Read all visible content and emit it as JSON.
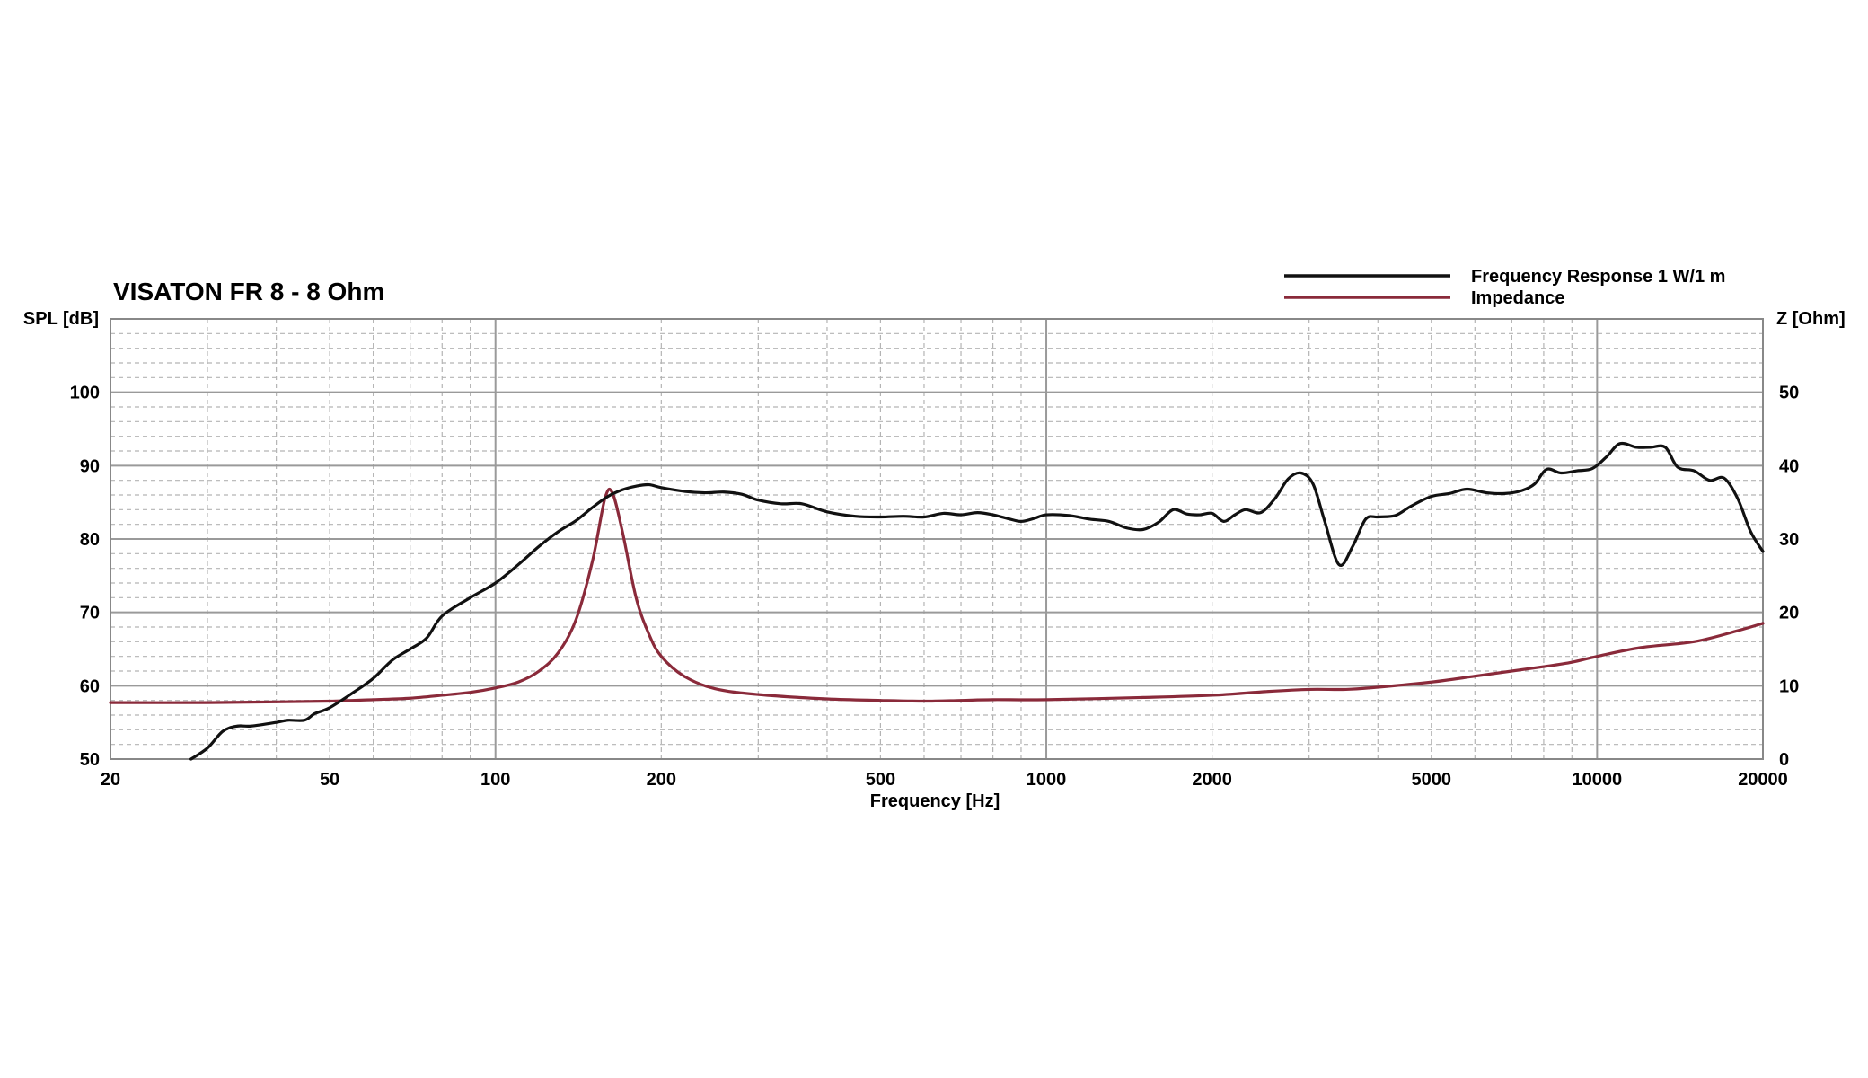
{
  "chart_data": {
    "type": "line",
    "title": "VISATON FR 8 - 8 Ohm",
    "xlabel": "Frequency [Hz]",
    "ylabel_left": "SPL [dB]",
    "ylabel_right": "Z [Ohm]",
    "x_scale": "log",
    "xlim": [
      20,
      20000
    ],
    "ylim_left": [
      50,
      110
    ],
    "ylim_right": [
      0,
      60
    ],
    "x_tick_labels": [
      "20",
      "50",
      "100",
      "200",
      "500",
      "1000",
      "2000",
      "5000",
      "10000",
      "20000"
    ],
    "y_left_tick_labels": [
      "50",
      "60",
      "70",
      "80",
      "90",
      "100"
    ],
    "y_right_tick_labels": [
      "0",
      "10",
      "20",
      "30",
      "40",
      "50"
    ],
    "grid": true,
    "legend_position": "top-right",
    "series": [
      {
        "name": "Frequency Response 1 W/1 m",
        "axis": "left",
        "color": "#111111",
        "points": [
          [
            28,
            50
          ],
          [
            30,
            51.5
          ],
          [
            32,
            53.8
          ],
          [
            34,
            54.5
          ],
          [
            36,
            54.5
          ],
          [
            40,
            55
          ],
          [
            42,
            55.3
          ],
          [
            45,
            55.3
          ],
          [
            47,
            56.2
          ],
          [
            50,
            57
          ],
          [
            55,
            59
          ],
          [
            60,
            61
          ],
          [
            65,
            63.5
          ],
          [
            70,
            65
          ],
          [
            75,
            66.5
          ],
          [
            80,
            69.5
          ],
          [
            90,
            72
          ],
          [
            100,
            74
          ],
          [
            110,
            76.5
          ],
          [
            120,
            79
          ],
          [
            130,
            81
          ],
          [
            140,
            82.5
          ],
          [
            150,
            84.3
          ],
          [
            160,
            85.8
          ],
          [
            170,
            86.7
          ],
          [
            180,
            87.2
          ],
          [
            190,
            87.4
          ],
          [
            200,
            87
          ],
          [
            220,
            86.5
          ],
          [
            240,
            86.3
          ],
          [
            260,
            86.4
          ],
          [
            280,
            86.1
          ],
          [
            300,
            85.3
          ],
          [
            330,
            84.8
          ],
          [
            360,
            84.8
          ],
          [
            400,
            83.7
          ],
          [
            450,
            83.1
          ],
          [
            500,
            83.0
          ],
          [
            550,
            83.1
          ],
          [
            600,
            83.0
          ],
          [
            650,
            83.5
          ],
          [
            700,
            83.3
          ],
          [
            750,
            83.6
          ],
          [
            800,
            83.3
          ],
          [
            850,
            82.8
          ],
          [
            900,
            82.4
          ],
          [
            950,
            82.8
          ],
          [
            1000,
            83.3
          ],
          [
            1100,
            83.2
          ],
          [
            1200,
            82.7
          ],
          [
            1300,
            82.4
          ],
          [
            1400,
            81.5
          ],
          [
            1500,
            81.3
          ],
          [
            1600,
            82.3
          ],
          [
            1700,
            84.0
          ],
          [
            1800,
            83.4
          ],
          [
            1900,
            83.3
          ],
          [
            2000,
            83.5
          ],
          [
            2100,
            82.4
          ],
          [
            2200,
            83.3
          ],
          [
            2300,
            84.0
          ],
          [
            2450,
            83.6
          ],
          [
            2600,
            85.5
          ],
          [
            2750,
            88.2
          ],
          [
            2900,
            89.0
          ],
          [
            3050,
            87.5
          ],
          [
            3200,
            82.5
          ],
          [
            3400,
            76.5
          ],
          [
            3600,
            79
          ],
          [
            3800,
            82.7
          ],
          [
            4000,
            83.0
          ],
          [
            4300,
            83.2
          ],
          [
            4600,
            84.5
          ],
          [
            5000,
            85.8
          ],
          [
            5400,
            86.2
          ],
          [
            5800,
            86.8
          ],
          [
            6300,
            86.3
          ],
          [
            6800,
            86.2
          ],
          [
            7300,
            86.6
          ],
          [
            7700,
            87.5
          ],
          [
            8100,
            89.5
          ],
          [
            8600,
            89.0
          ],
          [
            9200,
            89.3
          ],
          [
            9800,
            89.6
          ],
          [
            10400,
            91.2
          ],
          [
            11000,
            93.0
          ],
          [
            11800,
            92.5
          ],
          [
            12500,
            92.5
          ],
          [
            13300,
            92.5
          ],
          [
            14000,
            89.8
          ],
          [
            15000,
            89.3
          ],
          [
            16000,
            88.0
          ],
          [
            17000,
            88.3
          ],
          [
            18000,
            85.5
          ],
          [
            19000,
            81.0
          ],
          [
            20000,
            78.3
          ]
        ]
      },
      {
        "name": "Impedance",
        "axis": "right",
        "color": "#8a2a3a",
        "points": [
          [
            20,
            7.7
          ],
          [
            30,
            7.7
          ],
          [
            40,
            7.8
          ],
          [
            50,
            7.9
          ],
          [
            60,
            8.1
          ],
          [
            70,
            8.3
          ],
          [
            80,
            8.7
          ],
          [
            90,
            9.1
          ],
          [
            100,
            9.7
          ],
          [
            110,
            10.5
          ],
          [
            120,
            12.0
          ],
          [
            130,
            14.5
          ],
          [
            140,
            19.0
          ],
          [
            150,
            27.0
          ],
          [
            158,
            35.5
          ],
          [
            163,
            36.3
          ],
          [
            170,
            31.0
          ],
          [
            180,
            22.0
          ],
          [
            190,
            17.0
          ],
          [
            200,
            14.0
          ],
          [
            220,
            11.3
          ],
          [
            250,
            9.6
          ],
          [
            300,
            8.8
          ],
          [
            400,
            8.2
          ],
          [
            500,
            8.0
          ],
          [
            600,
            7.9
          ],
          [
            700,
            8.0
          ],
          [
            800,
            8.1
          ],
          [
            1000,
            8.1
          ],
          [
            1500,
            8.4
          ],
          [
            2000,
            8.7
          ],
          [
            2500,
            9.2
          ],
          [
            3000,
            9.5
          ],
          [
            3500,
            9.5
          ],
          [
            4000,
            9.8
          ],
          [
            5000,
            10.5
          ],
          [
            6000,
            11.3
          ],
          [
            7000,
            12.0
          ],
          [
            8000,
            12.6
          ],
          [
            9000,
            13.2
          ],
          [
            10000,
            14.0
          ],
          [
            12000,
            15.2
          ],
          [
            15000,
            16.0
          ],
          [
            18000,
            17.5
          ],
          [
            20000,
            18.5
          ]
        ]
      }
    ]
  }
}
